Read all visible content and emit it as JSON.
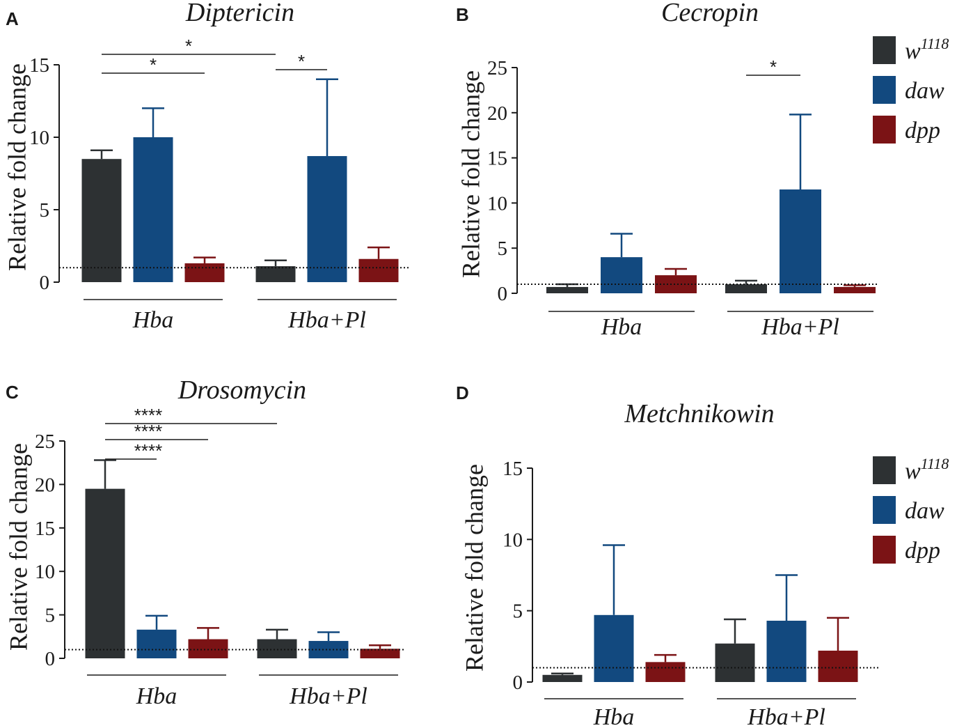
{
  "colors": {
    "w1118": "#2d3133",
    "daw": "#12497f",
    "dpp": "#7b1315",
    "axis": "#1a1a1a"
  },
  "legend": {
    "series": [
      {
        "key": "w1118",
        "base": "w",
        "sup": "1118"
      },
      {
        "key": "daw",
        "base": "daw",
        "sup": ""
      },
      {
        "key": "dpp",
        "base": "dpp",
        "sup": ""
      }
    ]
  },
  "chart_data": [
    {
      "panel": "A",
      "type": "bar",
      "title": "Diptericin",
      "ylabel": "Relative fold change",
      "ylim": [
        0,
        15
      ],
      "yticks": [
        0,
        5,
        10,
        15
      ],
      "groups": [
        "Hba",
        "Hba+Pl"
      ],
      "baseline": 1,
      "series": [
        {
          "name": "w1118",
          "values": [
            8.5,
            1.1
          ],
          "errors": [
            0.6,
            0.4
          ]
        },
        {
          "name": "daw",
          "values": [
            10.0,
            8.7
          ],
          "errors": [
            2.0,
            5.3
          ]
        },
        {
          "name": "dpp",
          "values": [
            1.3,
            1.6
          ],
          "errors": [
            0.4,
            0.8
          ]
        }
      ],
      "significance": [
        {
          "label": "*",
          "from": [
            0,
            "w1118"
          ],
          "to": [
            1,
            "w1118"
          ]
        },
        {
          "label": "*",
          "from": [
            0,
            "w1118"
          ],
          "to": [
            0,
            "dpp"
          ]
        },
        {
          "label": "*",
          "from": [
            1,
            "w1118"
          ],
          "to": [
            1,
            "daw"
          ]
        }
      ]
    },
    {
      "panel": "B",
      "type": "bar",
      "title": "Cecropin",
      "ylabel": "Relative fold change",
      "ylim": [
        0,
        25
      ],
      "yticks": [
        0,
        5,
        10,
        15,
        20,
        25
      ],
      "groups": [
        "Hba",
        "Hba+Pl"
      ],
      "baseline": 1,
      "series": [
        {
          "name": "w1118",
          "values": [
            0.7,
            1.0
          ],
          "errors": [
            0.3,
            0.4
          ]
        },
        {
          "name": "daw",
          "values": [
            4.0,
            11.5
          ],
          "errors": [
            2.6,
            8.3
          ]
        },
        {
          "name": "dpp",
          "values": [
            2.0,
            0.7
          ],
          "errors": [
            0.7,
            0.2
          ]
        }
      ],
      "significance": [
        {
          "label": "*",
          "from": [
            1,
            "w1118"
          ],
          "to": [
            1,
            "daw"
          ]
        }
      ]
    },
    {
      "panel": "C",
      "type": "bar",
      "title": "Drosomycin",
      "ylabel": "Relative fold change",
      "ylim": [
        0,
        25
      ],
      "yticks": [
        0,
        5,
        10,
        15,
        20,
        25
      ],
      "groups": [
        "Hba",
        "Hba+Pl"
      ],
      "baseline": 1,
      "series": [
        {
          "name": "w1118",
          "values": [
            19.5,
            2.2
          ],
          "errors": [
            3.3,
            1.1
          ]
        },
        {
          "name": "daw",
          "values": [
            3.3,
            2.0
          ],
          "errors": [
            1.6,
            1.0
          ]
        },
        {
          "name": "dpp",
          "values": [
            2.2,
            1.1
          ],
          "errors": [
            1.3,
            0.4
          ]
        }
      ],
      "significance": [
        {
          "label": "****",
          "from": [
            0,
            "w1118"
          ],
          "to": [
            1,
            "w1118"
          ]
        },
        {
          "label": "****",
          "from": [
            0,
            "w1118"
          ],
          "to": [
            0,
            "dpp"
          ]
        },
        {
          "label": "****",
          "from": [
            0,
            "w1118"
          ],
          "to": [
            0,
            "daw"
          ]
        }
      ]
    },
    {
      "panel": "D",
      "type": "bar",
      "title": "Metchnikowin",
      "ylabel": "Relative fold change",
      "ylim": [
        0,
        15
      ],
      "yticks": [
        0,
        5,
        10,
        15
      ],
      "groups": [
        "Hba",
        "Hba+Pl"
      ],
      "baseline": 1,
      "series": [
        {
          "name": "w1118",
          "values": [
            0.5,
            2.7
          ],
          "errors": [
            0.1,
            1.7
          ]
        },
        {
          "name": "daw",
          "values": [
            4.7,
            4.3
          ],
          "errors": [
            4.9,
            3.2
          ]
        },
        {
          "name": "dpp",
          "values": [
            1.4,
            2.2
          ],
          "errors": [
            0.5,
            2.3
          ]
        }
      ],
      "significance": []
    }
  ]
}
